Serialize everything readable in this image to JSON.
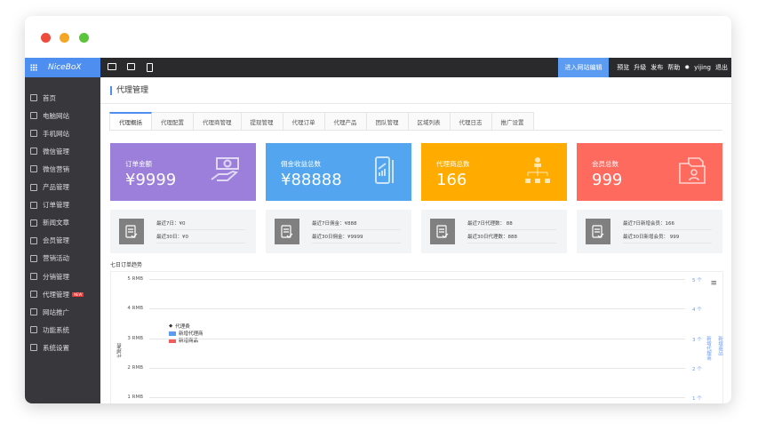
{
  "window": {
    "colors": {
      "close": "#ee4b3c",
      "min": "#f5a623",
      "max": "#5cc43a"
    }
  },
  "topbar": {
    "brand": "NiceBoX",
    "devices": [
      "desktop-icon",
      "tablet-icon",
      "mobile-icon"
    ],
    "edit_site": "进入网站编辑",
    "links": [
      "预览",
      "升级",
      "发布",
      "帮助"
    ],
    "user": "yijing",
    "logout": "退出"
  },
  "sidebar": {
    "items": [
      {
        "label": "首页"
      },
      {
        "label": "电脑网站"
      },
      {
        "label": "手机网站"
      },
      {
        "label": "微信管理"
      },
      {
        "label": "微信营销"
      },
      {
        "label": "产品管理"
      },
      {
        "label": "订单管理"
      },
      {
        "label": "新闻文章"
      },
      {
        "label": "会员管理"
      },
      {
        "label": "营销活动"
      },
      {
        "label": "分销管理"
      },
      {
        "label": "代理管理",
        "badge": "NEW"
      },
      {
        "label": "网站推广"
      },
      {
        "label": "功能系统"
      },
      {
        "label": "系统设置"
      }
    ]
  },
  "page": {
    "title": "代理管理",
    "tabs": [
      "代理概括",
      "代理配置",
      "代理商管理",
      "提现管理",
      "代理订单",
      "代理产品",
      "团队管理",
      "区域列表",
      "代理日志",
      "推广设置"
    ],
    "active_tab": "代理概括"
  },
  "cards": [
    {
      "label": "订单金额",
      "value": "¥9999",
      "color": "#9b7fdb",
      "icon": "money-hand-icon"
    },
    {
      "label": "佣金收益总数",
      "value": "¥88888",
      "color": "#52a5ee",
      "icon": "phone-chart-icon"
    },
    {
      "label": "代理商总数",
      "value": "166",
      "color": "#ffab00",
      "icon": "org-chart-icon"
    },
    {
      "label": "会员总数",
      "value": "999",
      "color": "#ff6a5f",
      "icon": "member-folder-icon"
    }
  ],
  "summaries": [
    {
      "r1": "最近7日：¥0",
      "r2": "最近30日：¥0"
    },
    {
      "r1": "最近7日佣金：¥888",
      "r2": "最近30日佣金：¥9999"
    },
    {
      "r1": "最近7日代理数： 88",
      "r2": "最近30日代理数：888"
    },
    {
      "r1": "最近7日新增会员：166",
      "r2": "最近30日新增会员： 999"
    }
  ],
  "chart_title": "七日订单趋势",
  "chart_data": {
    "type": "line",
    "series": [
      {
        "name": "代理费"
      },
      {
        "name": "新增代理商"
      },
      {
        "name": "新增商品"
      }
    ],
    "ylabel": "代理费",
    "y_ticks": [
      "5 RMB",
      "4 RMB",
      "3 RMB",
      "2 RMB",
      "1 RMB"
    ],
    "y2_ticks": [
      "5 个",
      "4 个",
      "3 个",
      "2 个",
      "1 个"
    ],
    "y2_labels": [
      "新增代理商",
      "新增商品"
    ],
    "legend": "left",
    "grid": true,
    "series_colors": [
      "#000000",
      "#5b9bf2",
      "#f15c5c"
    ]
  }
}
